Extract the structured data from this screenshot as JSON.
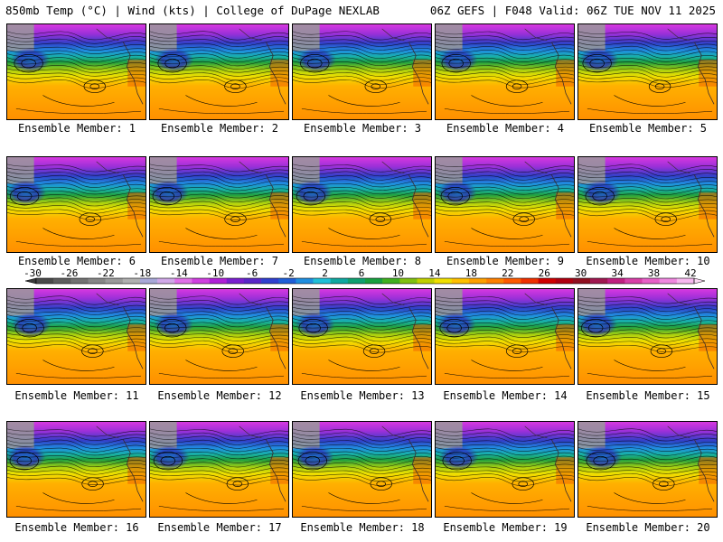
{
  "header": {
    "left": "850mb Temp (°C) | Wind (kts) | College of DuPage NEXLAB",
    "right": "06Z GEFS | F048 Valid: 06Z TUE NOV 11 2025"
  },
  "panels": [
    {
      "label": "Ensemble Member: 1"
    },
    {
      "label": "Ensemble Member: 2"
    },
    {
      "label": "Ensemble Member: 3"
    },
    {
      "label": "Ensemble Member: 4"
    },
    {
      "label": "Ensemble Member: 5"
    },
    {
      "label": "Ensemble Member: 6"
    },
    {
      "label": "Ensemble Member: 7"
    },
    {
      "label": "Ensemble Member: 8"
    },
    {
      "label": "Ensemble Member: 9"
    },
    {
      "label": "Ensemble Member: 10"
    },
    {
      "label": "Ensemble Member: 11"
    },
    {
      "label": "Ensemble Member: 12"
    },
    {
      "label": "Ensemble Member: 13"
    },
    {
      "label": "Ensemble Member: 14"
    },
    {
      "label": "Ensemble Member: 15"
    },
    {
      "label": "Ensemble Member: 16"
    },
    {
      "label": "Ensemble Member: 17"
    },
    {
      "label": "Ensemble Member: 18"
    },
    {
      "label": "Ensemble Member: 19"
    },
    {
      "label": "Ensemble Member: 20"
    }
  ],
  "colorbar": {
    "ticks": [
      "-30",
      "-26",
      "-22",
      "-18",
      "-14",
      "-10",
      "-6",
      "-2",
      "2",
      "6",
      "10",
      "14",
      "18",
      "22",
      "26",
      "30",
      "34",
      "38",
      "42"
    ],
    "colors": [
      "#4a4a4a",
      "#5e5e5e",
      "#727272",
      "#868686",
      "#9a9a9a",
      "#b0b0b0",
      "#a8a8d8",
      "#d0a8e8",
      "#e070e8",
      "#d040e0",
      "#b020d8",
      "#7a20d0",
      "#5a28c8",
      "#3040d0",
      "#1f5fd8",
      "#1f8fe0",
      "#20c0d8",
      "#10a8a0",
      "#10a070",
      "#18a040",
      "#40b020",
      "#80c010",
      "#c0d000",
      "#f0e000",
      "#ffc000",
      "#ffa000",
      "#ff8000",
      "#ff5a00",
      "#f03000",
      "#d00000",
      "#b00010",
      "#901020",
      "#a01850",
      "#c02080",
      "#d840a8",
      "#e860c8",
      "#f088e0",
      "#f8b8f0"
    ]
  }
}
